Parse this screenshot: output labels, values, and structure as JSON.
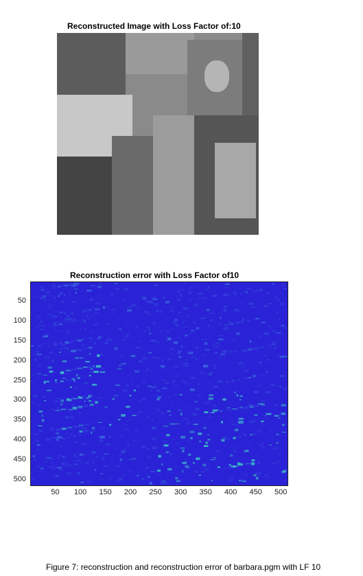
{
  "figure": {
    "top_title": "Reconstructed Image with Loss Factor of:10",
    "bottom_title": "Reconstruction error with Loss Factor of10",
    "caption": "Figure 7: reconstruction and reconstruction error of barbara.pgm with LF 10"
  },
  "chart_data": {
    "type": "heatmap",
    "title": "Reconstruction error with Loss Factor of10",
    "xlabel": "",
    "ylabel": "",
    "xlim": [
      0,
      512
    ],
    "ylim": [
      512,
      0
    ],
    "x_ticks": [
      50,
      100,
      150,
      200,
      250,
      300,
      350,
      400,
      450,
      500
    ],
    "y_ticks": [
      50,
      100,
      150,
      200,
      250,
      300,
      350,
      400,
      450,
      500
    ],
    "colormap": "parula-like (dark blue low, cyan/yellow high)",
    "colors": {
      "low": "#2a22d6",
      "mid": "#3b6fe0",
      "high": "#3fd2c6"
    }
  }
}
